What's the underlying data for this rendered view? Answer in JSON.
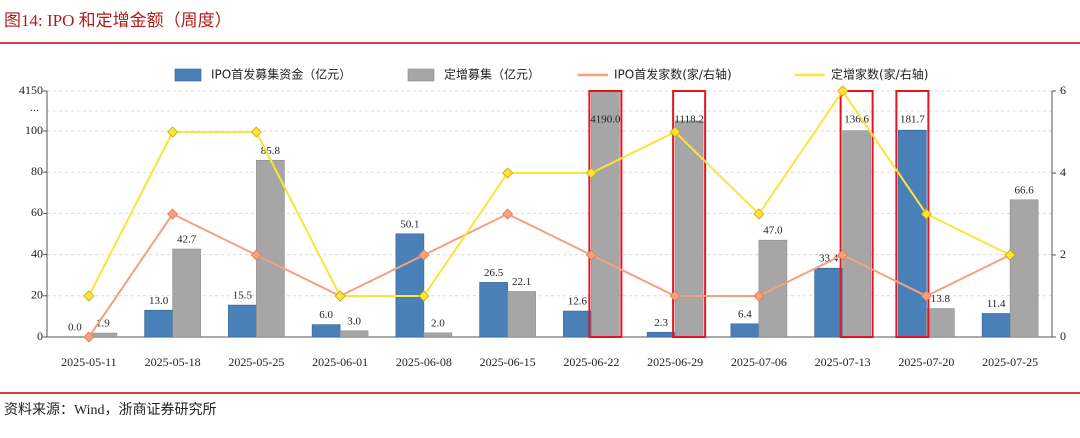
{
  "chart_data": {
    "type": "bar",
    "title": "图14:  IPO 和定增金额（周度）",
    "source": "资料来源：Wind，浙商证券研究所",
    "categories": [
      "2025-05-11",
      "2025-05-18",
      "2025-05-25",
      "2025-06-01",
      "2025-06-08",
      "2025-06-15",
      "2025-06-22",
      "2025-06-29",
      "2025-07-06",
      "2025-07-13",
      "2025-07-20",
      "2025-07-25"
    ],
    "series": [
      {
        "name": "IPO首发募集资金（亿元）",
        "type": "bar",
        "color": "#4a80b8",
        "values": [
          0,
          13,
          15.5,
          6,
          50.1,
          26.5,
          12.6,
          2.3,
          6.4,
          33.4,
          181.7,
          11.4
        ],
        "value_labels": [
          "0.0",
          "13.0",
          "15.5",
          "6.0",
          "50.1",
          "26.5",
          "12.6",
          "2.3",
          "6.4",
          "33.4",
          "181.7",
          "11.4"
        ]
      },
      {
        "name": "定增募集（亿元）",
        "type": "bar",
        "color": "#a6a6a6",
        "values": [
          1.9,
          42.7,
          85.8,
          3,
          2,
          22.1,
          4190,
          1118.2,
          47,
          136.6,
          13.8,
          66.6
        ],
        "value_labels": [
          "1.9",
          "42.7",
          "85.8",
          "3.0",
          "2.0",
          "22.1",
          "4190.0",
          "1118.2",
          "47.0",
          "136.6",
          "13.8",
          "66.6"
        ]
      },
      {
        "name": "IPO首发家数(家/右轴)",
        "type": "line",
        "axis": "y2",
        "color": "#f5a07e",
        "values": [
          0,
          3,
          2,
          1,
          2,
          3,
          2,
          1,
          1,
          2,
          1,
          2
        ]
      },
      {
        "name": "定增家数(家/右轴)",
        "type": "line",
        "axis": "y2",
        "color": "#ffe23a",
        "values": [
          1,
          5,
          5,
          1,
          1,
          4,
          4,
          5,
          3,
          6,
          3,
          2
        ]
      }
    ],
    "ylim": [
      0,
      4150
    ],
    "yticks": [
      0,
      20,
      40,
      60,
      80,
      100,
      4150
    ],
    "axis_break": {
      "after": 100,
      "label": "..."
    },
    "y2lim": [
      0,
      6
    ],
    "y2ticks": [
      0,
      2,
      4,
      6
    ],
    "highlight_color": "#e8141c",
    "grid": true
  }
}
